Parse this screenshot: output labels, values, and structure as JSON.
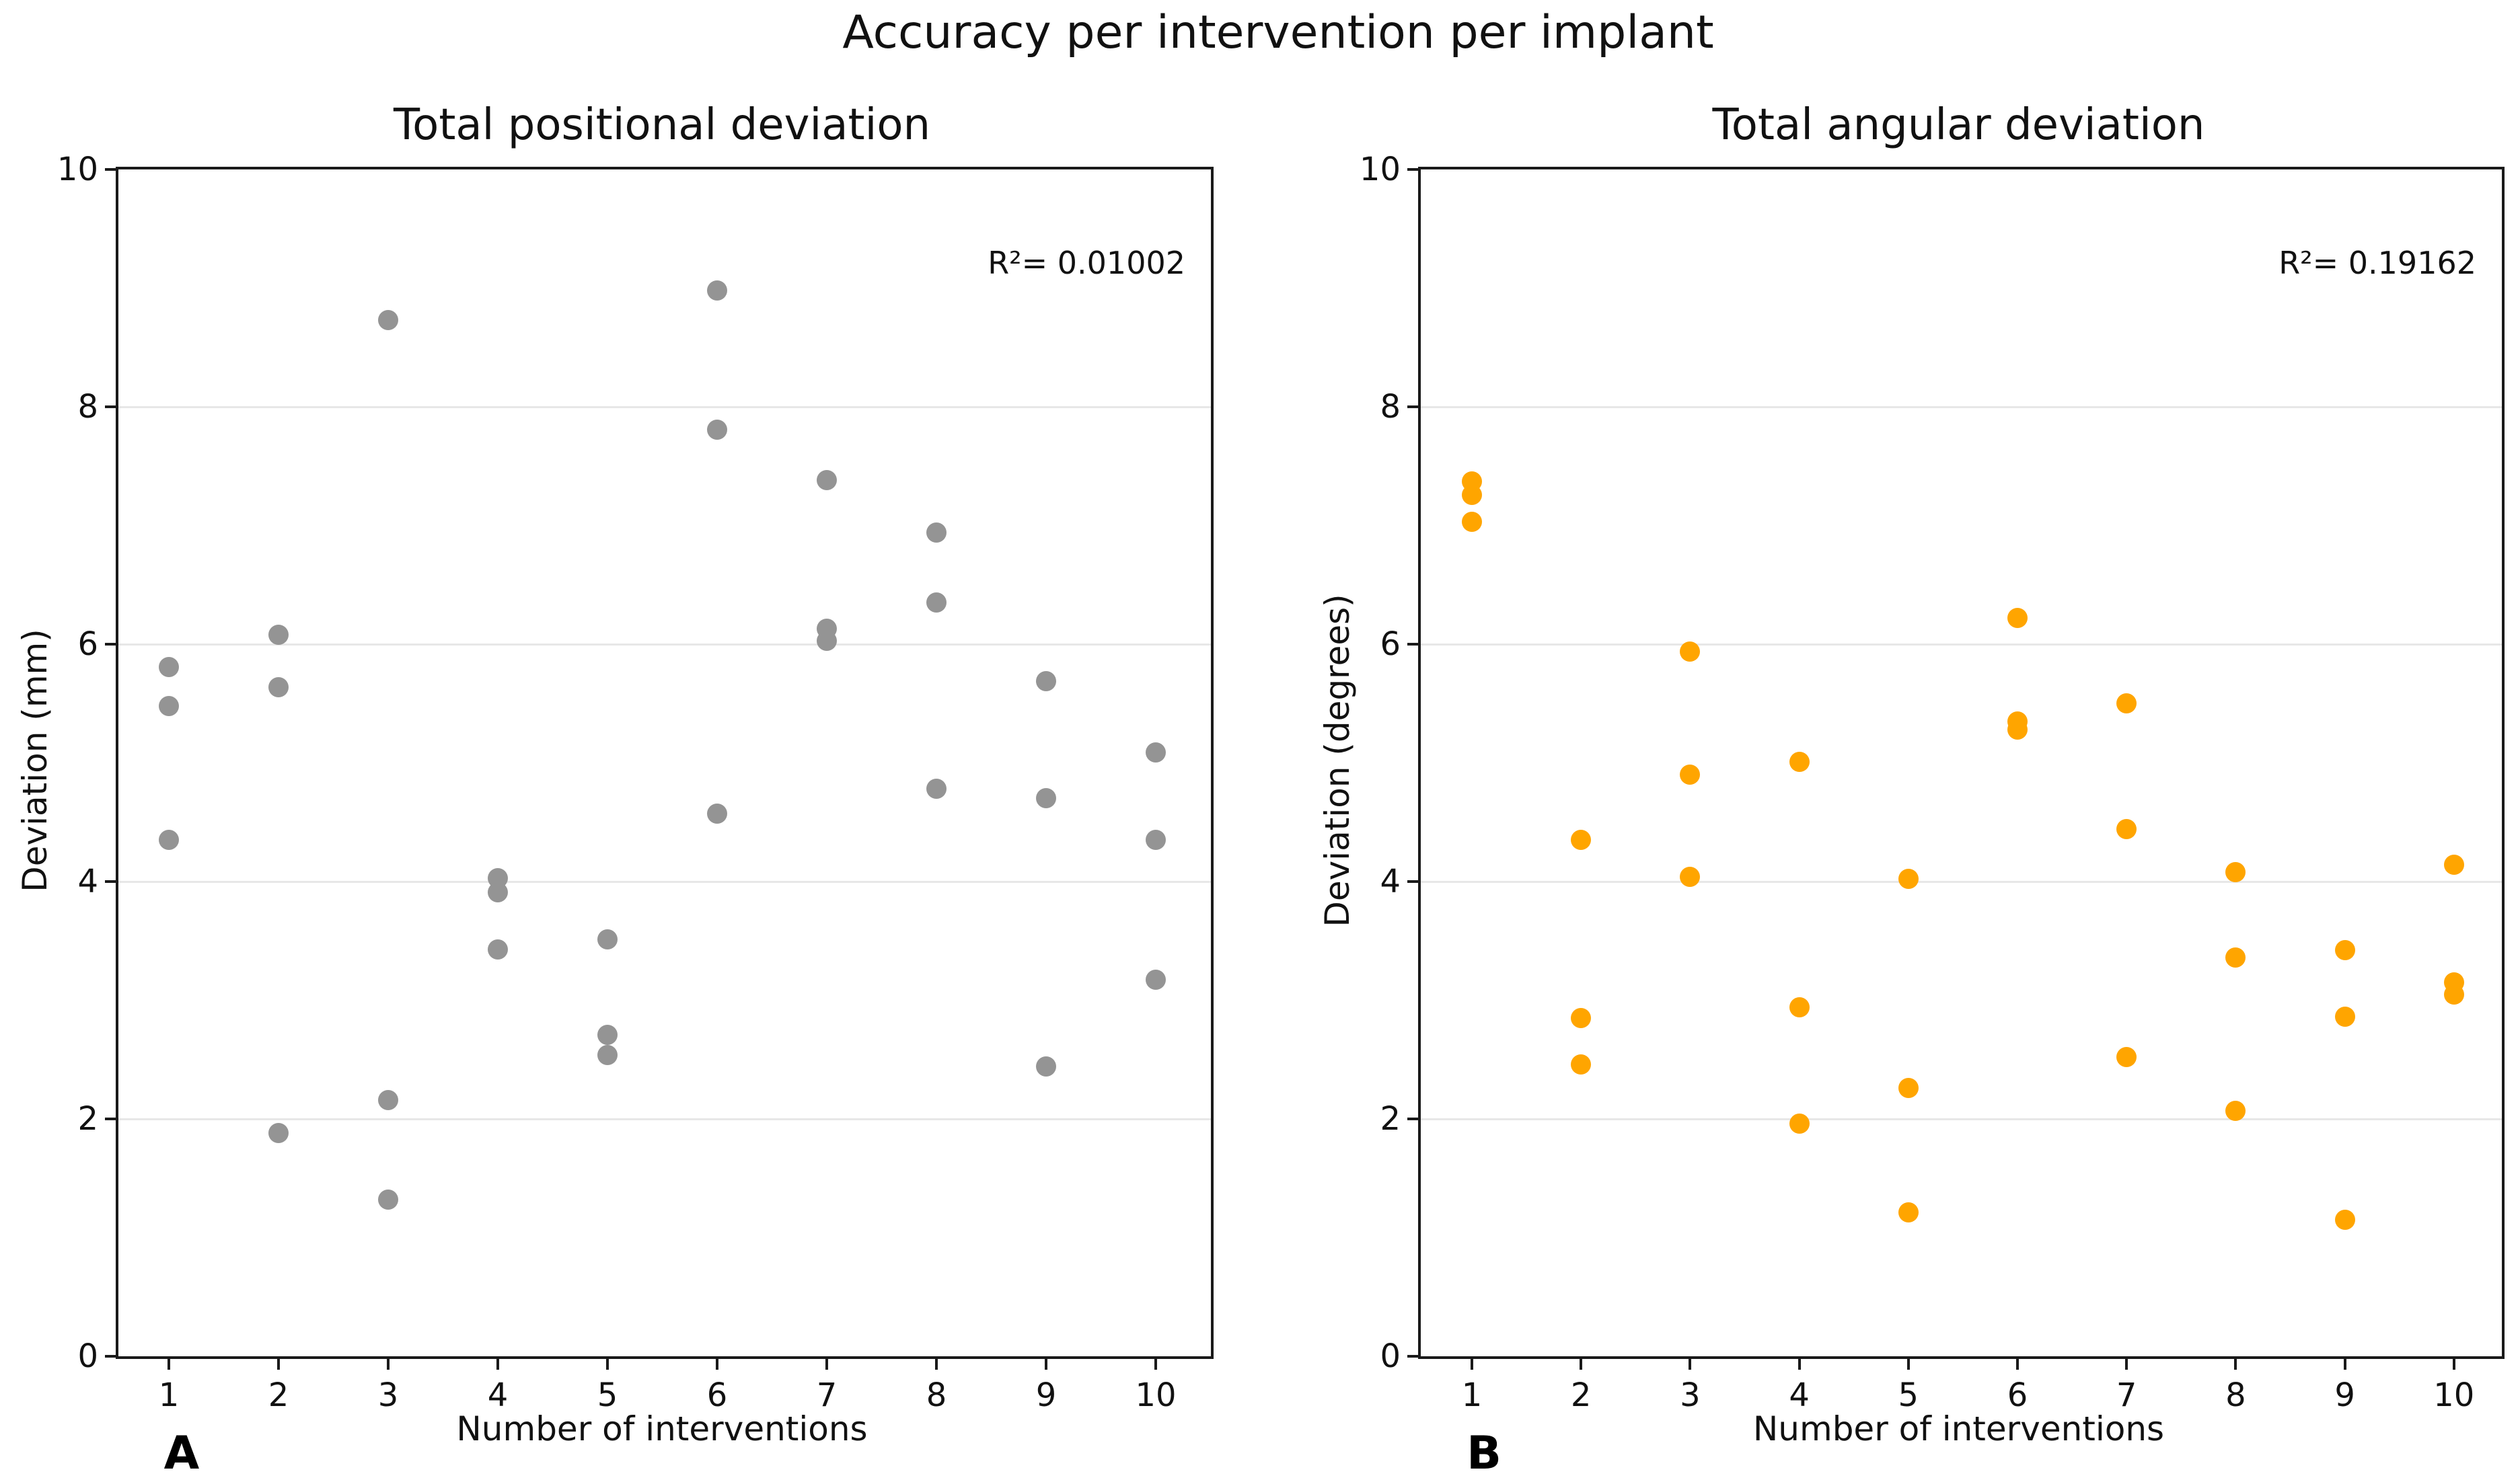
{
  "figure": {
    "title": "Accuracy per intervention per implant"
  },
  "chart_data": [
    {
      "type": "scatter",
      "panel_letter": "A",
      "title": "Total positional deviation",
      "xlabel": "Number of interventions",
      "ylabel": "Deviation (mm)",
      "annotation": "R²= 0.01002",
      "dot_color": "#949494",
      "xticks": [
        "1",
        "2",
        "3",
        "4",
        "5",
        "6",
        "7",
        "8",
        "9",
        "10"
      ],
      "yticks": [
        "0",
        "2",
        "4",
        "6",
        "8",
        "10"
      ],
      "ytick_values": [
        0,
        2,
        4,
        6,
        8,
        10
      ],
      "grid_values": [
        2,
        4,
        6,
        8
      ],
      "xlim": [
        0.54,
        10.5
      ],
      "ylim": [
        0,
        10
      ],
      "grid": "horizontal",
      "legend": "none",
      "points": [
        [
          1,
          5.81
        ],
        [
          1,
          5.48
        ],
        [
          1,
          4.35
        ],
        [
          2,
          6.08
        ],
        [
          2,
          5.64
        ],
        [
          2,
          1.88
        ],
        [
          3,
          8.73
        ],
        [
          3,
          2.16
        ],
        [
          3,
          1.32
        ],
        [
          4,
          4.03
        ],
        [
          4,
          3.91
        ],
        [
          4,
          3.43
        ],
        [
          5,
          3.51
        ],
        [
          5,
          2.71
        ],
        [
          5,
          2.54
        ],
        [
          6,
          8.98
        ],
        [
          6,
          7.81
        ],
        [
          6,
          4.57
        ],
        [
          7,
          7.38
        ],
        [
          7,
          6.13
        ],
        [
          7,
          6.03
        ],
        [
          8,
          6.94
        ],
        [
          8,
          6.35
        ],
        [
          8,
          4.78
        ],
        [
          9,
          5.69
        ],
        [
          9,
          4.7
        ],
        [
          9,
          2.44
        ],
        [
          10,
          5.09
        ],
        [
          10,
          4.35
        ],
        [
          10,
          3.17
        ]
      ]
    },
    {
      "type": "scatter",
      "panel_letter": "B",
      "title": "Total angular deviation",
      "xlabel": "Number of interventions",
      "ylabel": "Deviation (degrees)",
      "annotation": "R²= 0.19162",
      "dot_color": "#FFA500",
      "xticks": [
        "1",
        "2",
        "3",
        "4",
        "5",
        "6",
        "7",
        "8",
        "9",
        "10"
      ],
      "yticks": [
        "0",
        "2",
        "4",
        "6",
        "8",
        "10"
      ],
      "ytick_values": [
        0,
        2,
        4,
        6,
        8,
        10
      ],
      "grid_values": [
        2,
        4,
        6,
        8
      ],
      "xlim": [
        0.53,
        10.44
      ],
      "ylim": [
        0,
        10
      ],
      "grid": "horizontal",
      "legend": "none",
      "points": [
        [
          1,
          7.37
        ],
        [
          1,
          7.26
        ],
        [
          1,
          7.03
        ],
        [
          2,
          4.35
        ],
        [
          2,
          2.85
        ],
        [
          2,
          2.46
        ],
        [
          3,
          5.94
        ],
        [
          3,
          4.9
        ],
        [
          3,
          4.04
        ],
        [
          4,
          5.01
        ],
        [
          4,
          2.94
        ],
        [
          4,
          1.96
        ],
        [
          5,
          4.02
        ],
        [
          5,
          2.26
        ],
        [
          5,
          1.21
        ],
        [
          6,
          6.22
        ],
        [
          6,
          5.35
        ],
        [
          6,
          5.28
        ],
        [
          7,
          5.5
        ],
        [
          7,
          4.44
        ],
        [
          7,
          2.52
        ],
        [
          8,
          4.08
        ],
        [
          8,
          3.36
        ],
        [
          8,
          2.07
        ],
        [
          9,
          3.42
        ],
        [
          9,
          2.86
        ],
        [
          9,
          1.15
        ],
        [
          10,
          4.14
        ],
        [
          10,
          3.15
        ],
        [
          10,
          3.05
        ]
      ]
    }
  ]
}
